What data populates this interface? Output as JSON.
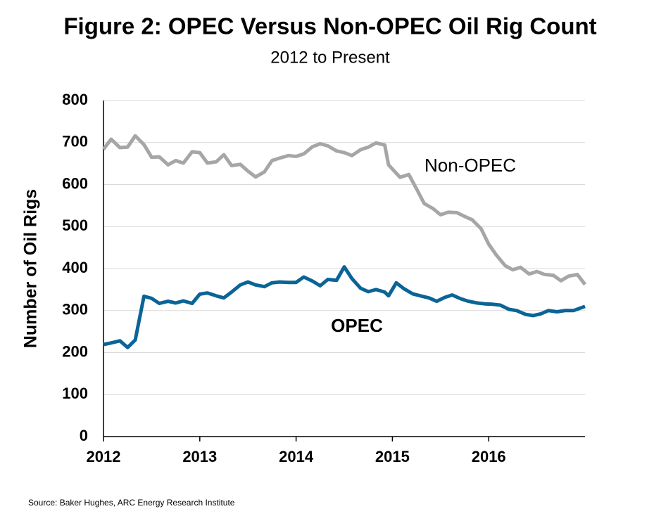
{
  "chart_data": {
    "type": "line",
    "title": "Figure 2: OPEC Versus Non-OPEC Oil Rig Count",
    "subtitle": "2012 to Present",
    "y_label": "Number of Oil Rigs",
    "source": "Source: Baker Hughes, ARC Energy Research Institute",
    "xlim": [
      2012,
      2017
    ],
    "xticks": [
      2012,
      2013,
      2014,
      2015,
      2016
    ],
    "ylim": [
      0,
      800
    ],
    "yticks": [
      0,
      100,
      200,
      300,
      400,
      500,
      600,
      700,
      800
    ],
    "grid": true,
    "series": [
      {
        "name": "Non-OPEC",
        "color": "#a6a6a6",
        "x": [
          2012.0,
          2012.08,
          2012.17,
          2012.25,
          2012.33,
          2012.42,
          2012.5,
          2012.58,
          2012.67,
          2012.75,
          2012.83,
          2012.92,
          2013.0,
          2013.08,
          2013.17,
          2013.25,
          2013.33,
          2013.42,
          2013.5,
          2013.58,
          2013.67,
          2013.75,
          2013.83,
          2013.92,
          2014.0,
          2014.08,
          2014.17,
          2014.25,
          2014.33,
          2014.42,
          2014.5,
          2014.58,
          2014.67,
          2014.75,
          2014.83,
          2014.92,
          2014.96,
          2015.08,
          2015.17,
          2015.25,
          2015.33,
          2015.42,
          2015.5,
          2015.58,
          2015.67,
          2015.75,
          2015.83,
          2015.92,
          2016.0,
          2016.08,
          2016.17,
          2016.25,
          2016.33,
          2016.42,
          2016.5,
          2016.58,
          2016.67,
          2016.75,
          2016.83,
          2016.92,
          2017.0
        ],
        "values": [
          684,
          708,
          688,
          689,
          716,
          695,
          665,
          666,
          647,
          657,
          651,
          678,
          676,
          651,
          654,
          671,
          645,
          648,
          632,
          618,
          630,
          657,
          663,
          669,
          667,
          673,
          690,
          697,
          692,
          680,
          676,
          669,
          683,
          689,
          699,
          694,
          647,
          617,
          624,
          590,
          555,
          543,
          528,
          534,
          533,
          524,
          516,
          495,
          458,
          432,
          407,
          397,
          403,
          387,
          393,
          386,
          384,
          371,
          382,
          386,
          362
        ]
      },
      {
        "name": "OPEC",
        "color": "#0b6496",
        "x": [
          2012.0,
          2012.08,
          2012.17,
          2012.25,
          2012.33,
          2012.42,
          2012.5,
          2012.58,
          2012.67,
          2012.75,
          2012.83,
          2012.92,
          2013.0,
          2013.08,
          2013.17,
          2013.25,
          2013.33,
          2013.42,
          2013.5,
          2013.58,
          2013.67,
          2013.75,
          2013.83,
          2013.92,
          2014.0,
          2014.08,
          2014.17,
          2014.25,
          2014.33,
          2014.42,
          2014.5,
          2014.58,
          2014.67,
          2014.75,
          2014.83,
          2014.92,
          2014.96,
          2015.04,
          2015.12,
          2015.21,
          2015.29,
          2015.38,
          2015.46,
          2015.54,
          2015.62,
          2015.71,
          2015.79,
          2015.88,
          2015.96,
          2016.04,
          2016.12,
          2016.21,
          2016.29,
          2016.38,
          2016.46,
          2016.54,
          2016.62,
          2016.71,
          2016.79,
          2016.88,
          2017.0
        ],
        "values": [
          219,
          223,
          228,
          212,
          230,
          334,
          329,
          317,
          322,
          318,
          323,
          317,
          339,
          342,
          335,
          330,
          344,
          361,
          368,
          361,
          357,
          366,
          368,
          367,
          367,
          380,
          370,
          359,
          374,
          372,
          404,
          376,
          353,
          345,
          350,
          344,
          335,
          366,
          352,
          340,
          335,
          330,
          322,
          331,
          337,
          328,
          322,
          318,
          316,
          315,
          313,
          303,
          300,
          291,
          288,
          292,
          300,
          297,
          300,
          300,
          310
        ]
      }
    ]
  }
}
